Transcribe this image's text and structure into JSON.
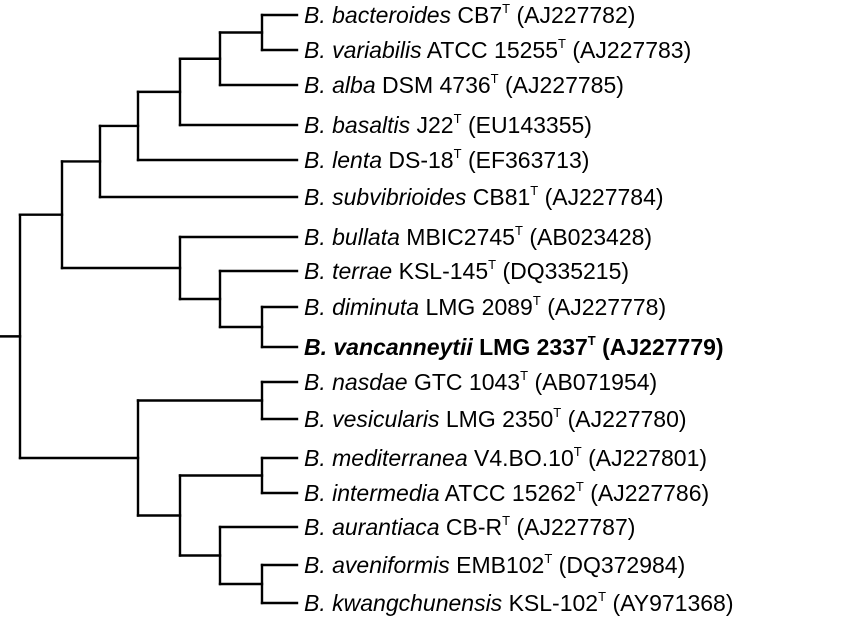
{
  "accent_color": "#000000",
  "leaves": [
    {
      "species": "B. bacteroides",
      "strain": "CB7",
      "type_mark": "T",
      "accession": "(AJ227782)",
      "bold": false
    },
    {
      "species": "B. variabilis",
      "strain": "ATCC 15255",
      "type_mark": "T",
      "accession": "(AJ227783)",
      "bold": false
    },
    {
      "species": "B. alba",
      "strain": "DSM 4736",
      "type_mark": "T",
      "accession": "(AJ227785)",
      "bold": false
    },
    {
      "species": "B. basaltis",
      "strain": "J22",
      "type_mark": "T",
      "accession": "(EU143355)",
      "bold": false
    },
    {
      "species": "B. lenta",
      "strain": "DS-18",
      "type_mark": "T",
      "accession": "(EF363713)",
      "bold": false
    },
    {
      "species": "B. subvibrioides",
      "strain": "CB81",
      "type_mark": "T",
      "accession": "(AJ227784)",
      "bold": false
    },
    {
      "species": "B. bullata",
      "strain": "MBIC2745",
      "type_mark": "T",
      "accession": "(AB023428)",
      "bold": false
    },
    {
      "species": "B. terrae",
      "strain": "KSL-145",
      "type_mark": "T",
      "accession": "(DQ335215)",
      "bold": false
    },
    {
      "species": "B. diminuta",
      "strain": "LMG 2089",
      "type_mark": "T",
      "accession": "(AJ227778)",
      "bold": false
    },
    {
      "species": "B. vancanneytii",
      "strain": "LMG 2337",
      "type_mark": "T",
      "accession": "(AJ227779)",
      "bold": true
    },
    {
      "species": "B. nasdae",
      "strain": "GTC 1043",
      "type_mark": "T",
      "accession": "(AB071954)",
      "bold": false
    },
    {
      "species": "B. vesicularis",
      "strain": "LMG 2350",
      "type_mark": "T",
      "accession": "(AJ227780)",
      "bold": false
    },
    {
      "species": "B. mediterranea",
      "strain": "V4.BO.10",
      "type_mark": "T",
      "accession": "(AJ227801)",
      "bold": false
    },
    {
      "species": "B. intermedia",
      "strain": "ATCC 15262",
      "type_mark": "T",
      "accession": "(AJ227786)",
      "bold": false
    },
    {
      "species": "B. aurantiaca",
      "strain": "CB-R",
      "type_mark": "T",
      "accession": "(AJ227787)",
      "bold": false
    },
    {
      "species": "B. aveniformis",
      "strain": "EMB102",
      "type_mark": "T",
      "accession": "(DQ372984)",
      "bold": false
    },
    {
      "species": "B. kwangchunensis",
      "strain": "KSL-102",
      "type_mark": "T",
      "accession": "(AY971368)",
      "bold": false
    }
  ]
}
